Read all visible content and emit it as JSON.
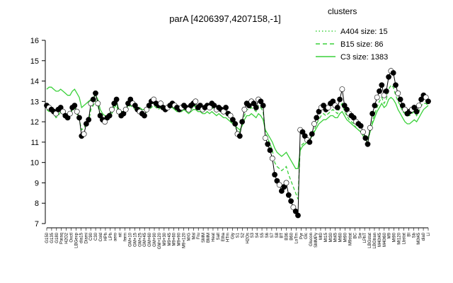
{
  "chart_data": {
    "type": "line",
    "title": "parA [4206397,4207158,-1]",
    "xlabel": "",
    "ylabel": "",
    "ylim": [
      7,
      16
    ],
    "yticks": [
      7,
      8,
      9,
      10,
      11,
      12,
      13,
      14,
      15,
      16
    ],
    "grid": false,
    "legend": {
      "title": "clusters",
      "placement": "top-right",
      "entries": [
        {
          "label": "A404 size: 15",
          "style": "dotted"
        },
        {
          "label": "B15 size: 86",
          "style": "dashed"
        },
        {
          "label": "C3 size: 1383",
          "style": "solid"
        }
      ]
    },
    "xtick_labels": [
      "G150",
      "G135",
      "G180",
      "Paraq",
      "H2O2",
      "Oxctl",
      "LBGexp",
      "dia15",
      "Diami",
      "C90",
      "C30",
      "Cold",
      "HPh",
      "LPh",
      "aero",
      "nit",
      "ferm",
      "GM+10",
      "GM+15",
      "GM+25",
      "GM+45",
      "GM+60",
      "GM+90",
      "GM+120",
      "M9+30",
      "M9+45",
      "M9+60",
      "M9+90",
      "M9+120",
      "M/G",
      "Mal",
      "Fru",
      "SMM",
      "BMM",
      "Heat",
      "Salt",
      "Etha",
      "HTm",
      "Gly",
      "S1",
      "S2",
      "H2Os",
      "S3",
      "S4",
      "S5",
      "S6",
      "S7",
      "S8",
      "BT",
      "B36",
      "B60",
      "LoTm",
      "Pyr",
      "Glc",
      "Glucon",
      "SMMPy",
      "Mt0",
      "Mt15",
      "Mt30",
      "Mt45",
      "Mt60",
      "Mt90",
      "M9stat",
      "BC",
      "Sw",
      "LPhT",
      "LBGstat",
      "LBGtran",
      "M40t45",
      "M40t60",
      "M9",
      "Mt90",
      "Mt120",
      "Lbstat",
      "BI",
      "Sb",
      "M0t45",
      "dia0",
      "Li"
    ],
    "x": [
      1,
      2,
      3,
      4,
      5,
      6,
      7,
      8,
      9,
      10,
      11,
      12,
      13,
      14,
      15,
      16,
      17,
      18,
      19,
      20,
      21,
      22,
      23,
      24,
      25,
      26,
      27,
      28,
      29,
      30,
      31,
      32,
      33,
      34,
      35,
      36,
      37,
      38,
      39,
      40,
      41,
      42,
      43,
      44,
      45,
      46,
      47,
      48,
      49,
      50,
      51,
      52,
      53,
      54,
      55,
      56,
      57,
      58,
      59,
      60,
      61,
      62,
      63,
      64,
      65,
      66,
      67,
      68,
      69,
      70,
      71,
      72,
      73,
      74,
      75,
      76,
      77,
      78,
      79,
      80,
      81,
      82,
      83,
      84,
      85,
      86,
      87,
      88,
      89,
      90,
      91,
      92,
      93,
      94,
      95,
      96,
      97,
      98,
      99,
      100,
      101,
      102,
      103,
      104,
      105,
      106,
      107,
      108,
      109,
      110,
      111,
      112,
      113,
      114,
      115,
      116,
      117,
      118,
      119,
      120,
      121,
      122,
      123,
      124,
      125,
      126,
      127,
      128,
      129,
      130,
      131,
      132,
      133,
      134,
      135,
      136,
      137,
      138,
      139,
      140,
      141,
      142,
      143,
      144,
      145,
      146,
      147,
      148,
      149,
      150,
      151,
      152,
      153,
      154,
      155,
      156,
      157,
      158,
      159,
      160,
      161,
      162,
      163,
      164,
      165
    ],
    "series": [
      {
        "values": [
          12.8,
          12.7,
          12.6,
          12.5,
          12.4,
          12.6,
          12.7,
          12.5,
          12.3,
          12.2,
          12.4,
          12.7,
          12.8,
          12.5,
          12.2,
          11.3,
          11.4,
          11.9,
          12.1,
          12.9,
          13.1,
          13.4,
          12.9,
          12.3,
          12.1,
          12.0,
          12.2,
          12.3,
          12.6,
          12.9,
          13.1,
          12.5,
          12.3,
          12.4,
          12.6,
          12.9,
          13.1,
          12.9,
          12.8,
          12.6,
          12.5,
          12.4,
          12.3,
          12.6,
          12.8,
          13.0,
          13.1,
          12.9,
          12.8,
          12.9,
          12.7,
          12.6,
          12.7,
          12.8,
          12.9,
          12.8,
          12.7,
          12.6,
          12.7,
          12.8,
          12.7,
          12.6,
          12.8,
          12.9,
          13.0,
          12.7,
          12.8,
          12.6,
          12.7,
          12.8,
          12.7,
          12.9,
          12.8,
          12.6,
          12.7,
          12.6,
          12.5,
          12.7,
          12.4,
          12.3,
          12.1,
          11.9,
          11.4,
          11.3,
          12.0,
          12.6,
          12.9,
          12.8,
          13.0,
          12.9,
          12.7,
          13.1,
          13.0,
          12.8,
          11.2,
          10.9,
          10.6,
          10.2,
          9.4,
          9.1,
          8.9,
          8.6,
          8.8,
          9.0,
          8.4,
          8.1,
          7.8,
          7.6,
          7.4,
          11.6,
          11.5,
          11.3,
          11.1,
          11.0,
          11.4,
          11.9,
          12.2,
          12.5,
          12.7,
          12.8,
          12.6,
          12.7,
          12.9,
          13.0,
          12.8,
          12.7,
          13.1,
          13.6,
          12.8,
          12.6,
          12.4,
          12.3,
          12.2,
          12.0,
          11.9,
          11.8,
          11.5,
          11.2,
          10.9,
          11.7,
          12.4,
          12.8,
          13.2,
          13.5,
          13.8,
          13.3,
          13.5,
          14.2,
          14.5,
          14.4,
          13.8,
          13.4,
          13.1,
          12.8,
          12.6,
          12.4,
          12.5,
          12.6,
          12.7,
          12.5,
          12.8,
          13.1,
          13.3,
          13.2,
          13.0
        ]
      },
      {
        "values": [
          12.6,
          12.5,
          12.5,
          12.4,
          12.2,
          12.3,
          12.5,
          12.4,
          12.2,
          12.1,
          12.3,
          12.6,
          12.7,
          12.4,
          12.1,
          11.6,
          11.7,
          11.9,
          12.0,
          12.6,
          12.8,
          13.0,
          12.8,
          12.3,
          12.1,
          12.0,
          12.1,
          12.2,
          12.4,
          12.7,
          12.8,
          12.4,
          12.3,
          12.4,
          12.5,
          12.7,
          12.8,
          12.7,
          12.6,
          12.5,
          12.4,
          12.3,
          12.3,
          12.5,
          12.6,
          12.7,
          12.8,
          12.7,
          12.6,
          12.7,
          12.6,
          12.5,
          12.6,
          12.7,
          12.7,
          12.6,
          12.6,
          12.5,
          12.6,
          12.7,
          12.6,
          12.5,
          12.6,
          12.7,
          12.8,
          12.6,
          12.6,
          12.5,
          12.6,
          12.7,
          12.6,
          12.7,
          12.6,
          12.5,
          12.6,
          12.5,
          12.4,
          12.5,
          12.3,
          12.2,
          12.0,
          11.8,
          11.5,
          11.5,
          11.9,
          12.3,
          12.6,
          12.6,
          12.7,
          12.6,
          12.5,
          12.8,
          12.7,
          12.5,
          11.5,
          11.2,
          10.9,
          10.6,
          10.0,
          9.8,
          9.7,
          9.6,
          9.7,
          9.8,
          9.4,
          9.1,
          8.8,
          8.5,
          8.2,
          10.8,
          10.9,
          11.0,
          11.1,
          11.1,
          11.3,
          11.6,
          11.9,
          12.1,
          12.3,
          12.4,
          12.3,
          12.4,
          12.5,
          12.6,
          12.5,
          12.4,
          12.7,
          12.9,
          12.5,
          12.3,
          12.1,
          12.0,
          11.9,
          11.7,
          11.6,
          11.5,
          11.3,
          11.1,
          11.0,
          11.5,
          12.0,
          12.4,
          12.7,
          13.0,
          13.2,
          12.9,
          13.1,
          13.6,
          13.8,
          13.7,
          13.3,
          13.0,
          12.8,
          12.5,
          12.4,
          12.3,
          12.3,
          12.4,
          12.5,
          12.3,
          12.5,
          12.8,
          12.9,
          12.9,
          12.8
        ]
      },
      {
        "values": [
          13.6,
          13.7,
          13.7,
          13.6,
          13.5,
          13.5,
          13.6,
          13.5,
          13.4,
          13.3,
          13.3,
          13.5,
          13.6,
          13.4,
          13.2,
          12.7,
          12.8,
          12.9,
          13.0,
          13.1,
          13.2,
          13.3,
          13.1,
          12.6,
          12.4,
          12.3,
          12.3,
          12.4,
          12.6,
          12.8,
          12.9,
          12.6,
          12.5,
          12.5,
          12.6,
          12.8,
          12.9,
          12.9,
          12.8,
          12.7,
          12.7,
          12.6,
          12.6,
          12.7,
          12.8,
          12.9,
          12.9,
          12.9,
          12.8,
          12.8,
          12.7,
          12.6,
          12.6,
          12.7,
          12.7,
          12.6,
          12.5,
          12.5,
          12.5,
          12.6,
          12.5,
          12.4,
          12.5,
          12.6,
          12.6,
          12.5,
          12.5,
          12.4,
          12.4,
          12.5,
          12.4,
          12.5,
          12.4,
          12.3,
          12.4,
          12.3,
          12.2,
          12.2,
          12.1,
          12.0,
          11.9,
          11.8,
          11.7,
          11.6,
          11.8,
          12.1,
          12.3,
          12.3,
          12.4,
          12.3,
          12.2,
          12.4,
          12.3,
          12.1,
          11.6,
          11.4,
          11.2,
          11.0,
          10.7,
          10.5,
          10.4,
          10.3,
          10.4,
          10.5,
          10.3,
          10.1,
          9.9,
          9.7,
          9.7,
          10.6,
          10.8,
          10.9,
          11.0,
          11.1,
          11.3,
          11.5,
          11.7,
          11.9,
          12.0,
          12.1,
          12.1,
          12.2,
          12.3,
          12.3,
          12.2,
          12.2,
          12.4,
          12.5,
          12.3,
          12.1,
          12.0,
          11.9,
          11.8,
          11.7,
          11.6,
          11.5,
          11.4,
          11.3,
          11.2,
          11.5,
          11.9,
          12.2,
          12.5,
          12.7,
          12.9,
          12.7,
          12.8,
          13.1,
          13.2,
          13.1,
          12.9,
          12.6,
          12.4,
          12.2,
          12.0,
          11.9,
          11.9,
          12.0,
          12.1,
          12.0,
          12.2,
          12.4,
          12.6,
          12.7,
          12.8
        ]
      }
    ]
  }
}
